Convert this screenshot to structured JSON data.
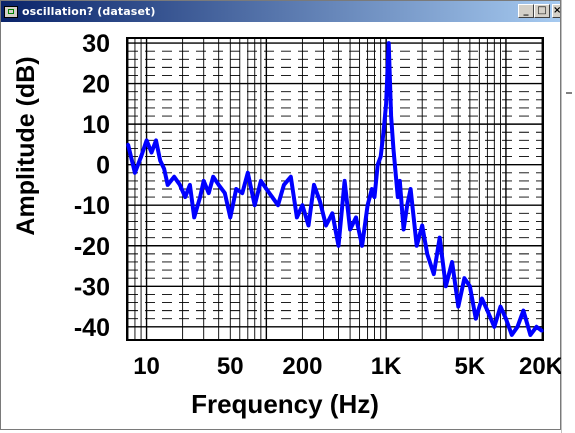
{
  "window": {
    "title": "oscillation? (dataset)",
    "controls": {
      "minimize": "_",
      "maximize": "□",
      "close": "×"
    }
  },
  "chart_data": {
    "type": "line",
    "title": "",
    "xlabel": "Frequency (Hz)",
    "ylabel": "Amplitude (dB)",
    "x_scale": "log",
    "xlim": [
      7,
      20000
    ],
    "ylim": [
      -43,
      31
    ],
    "grid": true,
    "x_ticks": [
      10,
      50,
      200,
      1000,
      5000,
      20000
    ],
    "x_tick_labels": [
      "10",
      "50",
      "200",
      "1K",
      "5K",
      "20K"
    ],
    "y_ticks": [
      30,
      20,
      10,
      0,
      -10,
      -20,
      -30,
      -40
    ],
    "y_tick_labels": [
      "30",
      "20",
      "10",
      "0",
      "-10",
      "-20",
      "-30",
      "-40"
    ],
    "series": [
      {
        "color": "#0000ff",
        "x": [
          7,
          8,
          9,
          10,
          11,
          12,
          13,
          14,
          15,
          17,
          19,
          21,
          23,
          25,
          28,
          30,
          33,
          36,
          40,
          45,
          50,
          56,
          63,
          70,
          80,
          90,
          100,
          112,
          125,
          140,
          160,
          180,
          200,
          225,
          250,
          280,
          315,
          355,
          400,
          450,
          500,
          560,
          630,
          700,
          760,
          800,
          850,
          900,
          950,
          1000,
          1050,
          1100,
          1150,
          1200,
          1250,
          1300,
          1400,
          1500,
          1600,
          1800,
          2000,
          2200,
          2500,
          2800,
          3150,
          3550,
          4000,
          4500,
          5000,
          5600,
          6300,
          7000,
          8000,
          9000,
          10000,
          11200,
          12500,
          14000,
          16000,
          18000,
          20000
        ],
        "values": [
          5,
          -2,
          2,
          6,
          3,
          6,
          1,
          -1,
          -5,
          -3,
          -5,
          -8,
          -5,
          -13,
          -8,
          -4,
          -7,
          -3,
          -5,
          -7,
          -13,
          -6,
          -7,
          -2,
          -10,
          -4,
          -6,
          -8,
          -10,
          -5,
          -3,
          -13,
          -10,
          -15,
          -5,
          -9,
          -15,
          -12,
          -20,
          -4,
          -16,
          -13,
          -20,
          -10,
          -6,
          -8,
          0,
          2,
          8,
          15,
          30,
          12,
          4,
          -2,
          -8,
          -4,
          -16,
          -10,
          -6,
          -20,
          -15,
          -22,
          -27,
          -18,
          -30,
          -24,
          -35,
          -28,
          -30,
          -38,
          -33,
          -36,
          -40,
          -35,
          -38,
          -42,
          -40,
          -36,
          -42,
          -40,
          -41
        ]
      }
    ]
  }
}
